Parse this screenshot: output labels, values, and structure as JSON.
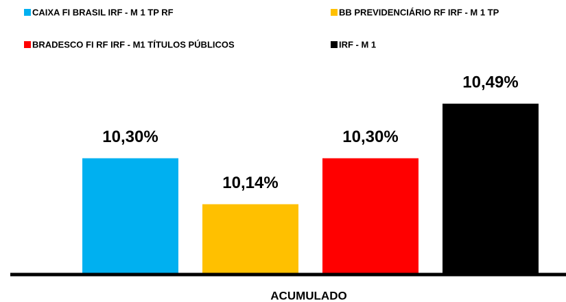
{
  "chart_data": {
    "type": "bar",
    "categories": [
      "ACUMULADO"
    ],
    "series": [
      {
        "name": "CAIXA FI BRASIL IRF - M 1 TP RF",
        "color": "#00b0f0",
        "values": [
          10.3
        ],
        "value_labels": [
          "10,30%"
        ]
      },
      {
        "name": "BB PREVIDENCIÁRIO RF IRF - M 1 TP",
        "color": "#ffc000",
        "values": [
          10.14
        ],
        "value_labels": [
          "10,14%"
        ]
      },
      {
        "name": "BRADESCO FI RF IRF - M1 TÍTULOS PÚBLICOS",
        "color": "#ff0000",
        "values": [
          10.3
        ],
        "value_labels": [
          "10,30%"
        ]
      },
      {
        "name": "IRF - M 1",
        "color": "#000000",
        "values": [
          10.49
        ],
        "value_labels": [
          "10,49%"
        ]
      }
    ],
    "ylim": [
      9.9,
      10.6
    ],
    "legend": "top"
  }
}
